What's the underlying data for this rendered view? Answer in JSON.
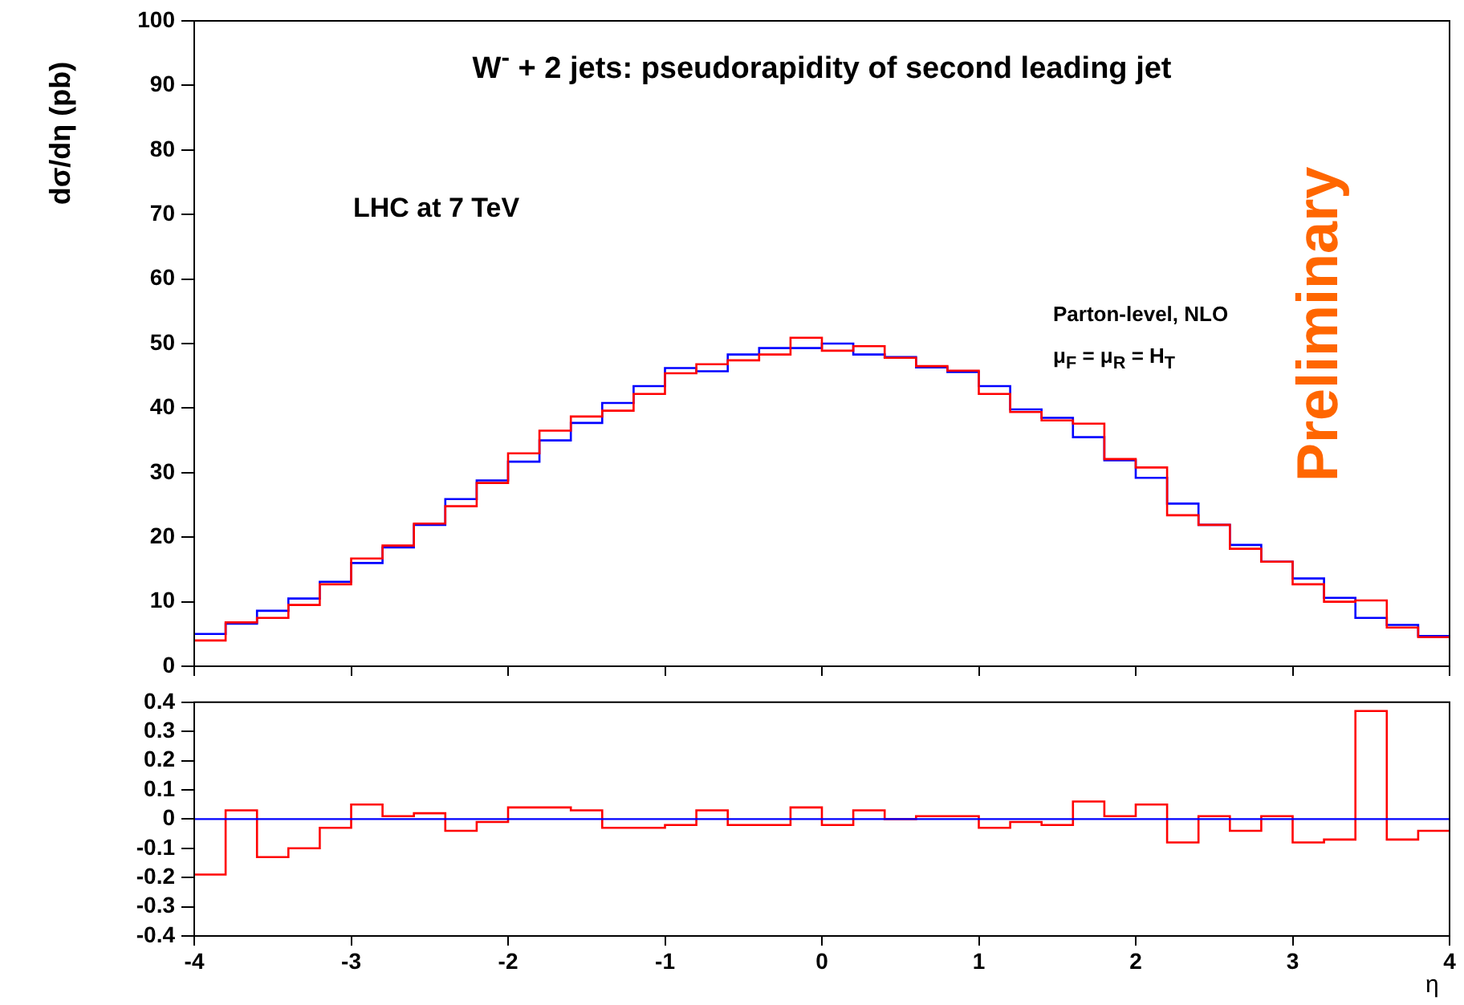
{
  "chart_data": [
    {
      "type": "histogram",
      "title": "W$^{-}$ + 2 jets: pseudorapidity of second leading jet",
      "ylabel": "dσ/dη (pb)",
      "bins": [
        -4,
        -3.8,
        -3.6,
        -3.4,
        -3.2,
        -3,
        -2.8,
        -2.6,
        -2.4,
        -2.2,
        -2,
        -1.8,
        -1.6,
        -1.4,
        -1.2,
        -1,
        -0.8,
        -0.6,
        -0.4,
        -0.2,
        0,
        0.2,
        0.4,
        0.6,
        0.8,
        1,
        1.2,
        1.4,
        1.6,
        1.8,
        2,
        2.2,
        2.4,
        2.6,
        2.8,
        3,
        3.2,
        3.4,
        3.6,
        3.8,
        4
      ],
      "series": [
        {
          "color": "#ff0000",
          "values": [
            4.0,
            6.8,
            7.5,
            9.5,
            12.7,
            16.7,
            18.7,
            22.1,
            24.8,
            28.4,
            33.0,
            36.5,
            38.7,
            39.6,
            42.2,
            45.4,
            46.8,
            47.4,
            48.3,
            50.9,
            48.9,
            49.6,
            47.8,
            46.5,
            45.8,
            42.2,
            39.4,
            38.1,
            37.6,
            32.1,
            30.8,
            23.4,
            21.9,
            18.2,
            16.2,
            12.7,
            10.0,
            10.2,
            6.0,
            4.5
          ]
        },
        {
          "color": "#0000ff",
          "values": [
            5.0,
            6.6,
            8.6,
            10.5,
            13.1,
            16.0,
            18.4,
            21.9,
            25.9,
            28.8,
            31.7,
            35.0,
            37.7,
            40.8,
            43.4,
            46.2,
            45.7,
            48.3,
            49.3,
            49.3,
            50.0,
            48.3,
            47.9,
            46.3,
            45.6,
            43.4,
            39.8,
            38.5,
            35.5,
            31.9,
            29.2,
            25.2,
            21.9,
            18.8,
            16.2,
            13.6,
            10.6,
            7.5,
            6.4,
            4.7
          ]
        }
      ],
      "xlim": [
        -4,
        4
      ],
      "xticks": [
        -4,
        -3,
        -2,
        -1,
        0,
        1,
        2,
        3,
        4
      ],
      "ylim": [
        0,
        100
      ],
      "yticks": [
        0,
        10,
        20,
        30,
        40,
        50,
        60,
        70,
        80,
        90,
        100
      ],
      "tick_labels": "y",
      "annotations": [
        "LHC at 7 TeV",
        "Parton-level, NLO",
        "μ$_{F}$ = μ$_{R}$ = H$_{T}$",
        "Preliminary"
      ]
    },
    {
      "type": "histogram",
      "xlabel": "η",
      "bins": [
        -4,
        -3.8,
        -3.6,
        -3.4,
        -3.2,
        -3,
        -2.8,
        -2.6,
        -2.4,
        -2.2,
        -2,
        -1.8,
        -1.6,
        -1.4,
        -1.2,
        -1,
        -0.8,
        -0.6,
        -0.4,
        -0.2,
        0,
        0.2,
        0.4,
        0.6,
        0.8,
        1,
        1.2,
        1.4,
        1.6,
        1.8,
        2,
        2.2,
        2.4,
        2.6,
        2.8,
        3,
        3.2,
        3.4,
        3.6,
        3.8,
        4
      ],
      "values": [
        -0.19,
        0.03,
        -0.13,
        -0.1,
        -0.03,
        0.05,
        0.01,
        0.02,
        -0.04,
        -0.01,
        0.04,
        0.04,
        0.03,
        -0.03,
        -0.03,
        -0.02,
        0.03,
        -0.02,
        -0.02,
        0.04,
        -0.02,
        0.03,
        0,
        0.01,
        0.01,
        -0.03,
        -0.01,
        -0.02,
        0.06,
        0.01,
        0.05,
        -0.08,
        0.01,
        -0.04,
        0.01,
        -0.08,
        -0.07,
        0.37,
        -0.07,
        -0.04
      ],
      "color": "#ff0000",
      "xlim": [
        -4,
        4
      ],
      "xticks": [
        -4,
        -3,
        -2,
        -1,
        0,
        1,
        2,
        3,
        4
      ],
      "ylim": [
        -0.4,
        0.4
      ],
      "yticks": [
        -0.4,
        -0.3,
        -0.2,
        -0.1,
        0,
        0.1,
        0.2,
        0.3,
        0.4
      ],
      "ref_lines": [
        {
          "axis": "y",
          "value": 0,
          "color": "#0000ff"
        }
      ]
    }
  ]
}
